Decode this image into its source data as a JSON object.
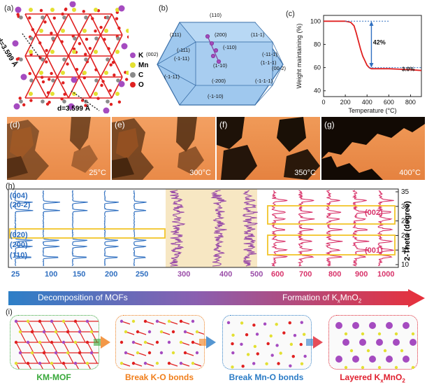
{
  "panel_a": {
    "label": "(a)",
    "d_top": "d=3.599 Å",
    "d_bottom": "d=3.599 Å",
    "legend": [
      {
        "name": "K",
        "color": "#a54bc0"
      },
      {
        "name": "Mn",
        "color": "#e3e032"
      },
      {
        "name": "C",
        "color": "#8a8a8a"
      },
      {
        "name": "O",
        "color": "#e02020"
      }
    ]
  },
  "panel_b": {
    "label": "(b)",
    "facets": [
      "(110)",
      "(111)",
      "(200)",
      "(11-1)",
      "(002)",
      "(-111)",
      "(-1-11)",
      "(-110)",
      "(-11-1)",
      "(1-1-1)",
      "(00-2)",
      "(1-10)",
      "(-1-11)",
      "(-200)",
      "(-1-1-1)",
      "(-1-10)"
    ]
  },
  "panel_c": {
    "label": "(c)",
    "chart_data": {
      "type": "line",
      "xlabel": "Temperature (°C)",
      "ylabel": "Weight maintaining (%)",
      "xlim": [
        0,
        900
      ],
      "ylim": [
        35,
        105
      ],
      "xticks": [
        "0",
        "200",
        "400",
        "600",
        "800"
      ],
      "yticks": [
        "40",
        "60",
        "80",
        "100"
      ],
      "annotations": [
        "42%",
        "3.0%"
      ],
      "series": [
        {
          "color": "#e02020",
          "x": [
            0,
            100,
            200,
            250,
            280,
            300,
            320,
            340,
            360,
            380,
            400,
            420,
            440,
            500,
            600,
            700,
            800,
            900
          ],
          "y": [
            100,
            100,
            100,
            99,
            96,
            90,
            83,
            76,
            70,
            66,
            62,
            60,
            59,
            59,
            59,
            58.6,
            58.2,
            57.5
          ]
        }
      ]
    }
  },
  "panel_d": {
    "label": "(d)",
    "temp": "25°C"
  },
  "panel_e": {
    "label": "(e)",
    "temp": "300°C"
  },
  "panel_f": {
    "label": "(f)",
    "temp": "350°C"
  },
  "panel_g": {
    "label": "(g)",
    "temp": "400°C"
  },
  "panel_h": {
    "label": "(h)",
    "ylabel": "2-Theta (degree)",
    "yticks": [
      "10",
      "15",
      "20",
      "25",
      "30",
      "35"
    ],
    "xticks_blue": [
      "25",
      "100",
      "150",
      "200",
      "250"
    ],
    "xticks_purple": [
      "300",
      "400",
      "500"
    ],
    "xticks_red": [
      "600",
      "700",
      "800",
      "900",
      "1000"
    ],
    "left_peaks": [
      "(004)",
      "(20-2)",
      "(020)",
      "(200)",
      "(110)"
    ],
    "right_peaks": [
      "(002)",
      "(001)"
    ],
    "colors": {
      "blue": "#2f6fc0",
      "purple": "#9a4da8",
      "red": "#d8336a",
      "shade": "#f7e7c3"
    }
  },
  "arrow": {
    "left_text": "Decomposition of MOFs",
    "right_text": "Formation of K",
    "right_sub": "x",
    "right_text_end": "MnO",
    "right_sub2": "2"
  },
  "panel_i": {
    "label": "(i)",
    "stages": [
      {
        "text": "KM-MOF",
        "color": "#38a83a"
      },
      {
        "text": "Break K-O bonds",
        "color": "#f07e1a"
      },
      {
        "text": "Break Mn-O bonds",
        "color": "#2b7cc6"
      },
      {
        "text": "Layered K",
        "sub": "x",
        "text2": "MnO",
        "sub2": "2",
        "color": "#e0202f"
      }
    ]
  }
}
